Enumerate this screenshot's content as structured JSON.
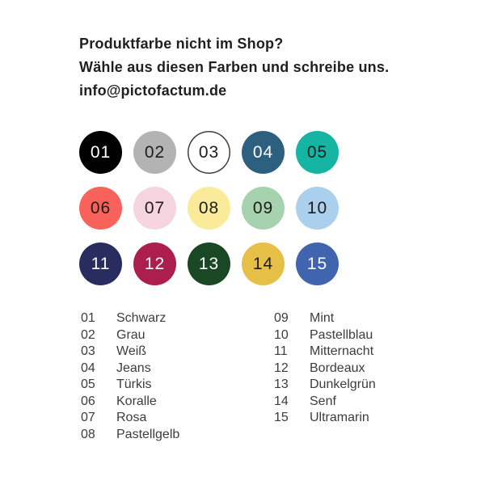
{
  "header": {
    "title": "Produktfarbe nicht im Shop?",
    "subtitle": "Wähle aus diesen Farben und schreibe uns.",
    "email": "info@pictofactum.de"
  },
  "palette": {
    "circles": [
      {
        "number": "01",
        "name": "Schwarz",
        "color": "#000000",
        "text_color": "#ffffff"
      },
      {
        "number": "02",
        "name": "Grau",
        "color": "#b3b3b3",
        "text_color": "#1c1c1c"
      },
      {
        "number": "03",
        "name": "Weiß",
        "color": "#ffffff",
        "text_color": "#1c1c1c",
        "border_color": "#3f3f3f"
      },
      {
        "number": "04",
        "name": "Jeans",
        "color": "#2d5f7e",
        "text_color": "#ffffff"
      },
      {
        "number": "05",
        "name": "Türkis",
        "color": "#16b5a3",
        "text_color": "#1c1c1c"
      },
      {
        "number": "06",
        "name": "Koralle",
        "color": "#f8625a",
        "text_color": "#1c1c1c"
      },
      {
        "number": "07",
        "name": "Rosa",
        "color": "#f6d5e1",
        "text_color": "#1c1c1c"
      },
      {
        "number": "08",
        "name": "Pastellgelb",
        "color": "#f9eb99",
        "text_color": "#1c1c1c"
      },
      {
        "number": "09",
        "name": "Mint",
        "color": "#a6d2ae",
        "text_color": "#1c1c1c"
      },
      {
        "number": "10",
        "name": "Pastellblau",
        "color": "#abd0ee",
        "text_color": "#1c1c1c"
      },
      {
        "number": "11",
        "name": "Mitternacht",
        "color": "#282c5e",
        "text_color": "#ffffff"
      },
      {
        "number": "12",
        "name": "Bordeaux",
        "color": "#ac1e4e",
        "text_color": "#ffffff"
      },
      {
        "number": "13",
        "name": "Dunkelgrün",
        "color": "#1a4724",
        "text_color": "#ffffff"
      },
      {
        "number": "14",
        "name": "Senf",
        "color": "#e6bf46",
        "text_color": "#1c1c1c"
      },
      {
        "number": "15",
        "name": "Ultramarin",
        "color": "#4164ae",
        "text_color": "#ffffff"
      }
    ]
  }
}
